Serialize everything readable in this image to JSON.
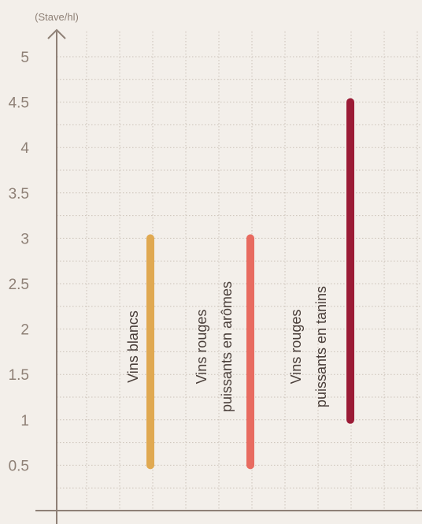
{
  "chart_data": {
    "type": "range-bar",
    "ylabel": "(Stave/hl)",
    "ylim": [
      0,
      5.2
    ],
    "yticks": [
      "0.5",
      "1",
      "1.5",
      "2",
      "2.5",
      "3",
      "3.5",
      "4",
      "4.5",
      "5"
    ],
    "grid": true,
    "series": [
      {
        "label_lines": [
          "Vins blancs"
        ],
        "min": 0.5,
        "max": 3.0,
        "color": "#e0a951"
      },
      {
        "label_lines": [
          "Vins rouges",
          "puissants en arômes"
        ],
        "min": 0.5,
        "max": 3.0,
        "color": "#e86b60"
      },
      {
        "label_lines": [
          "Vins rouges",
          "puissants en tanins"
        ],
        "min": 1.0,
        "max": 4.5,
        "color": "#9b1b36"
      }
    ]
  }
}
